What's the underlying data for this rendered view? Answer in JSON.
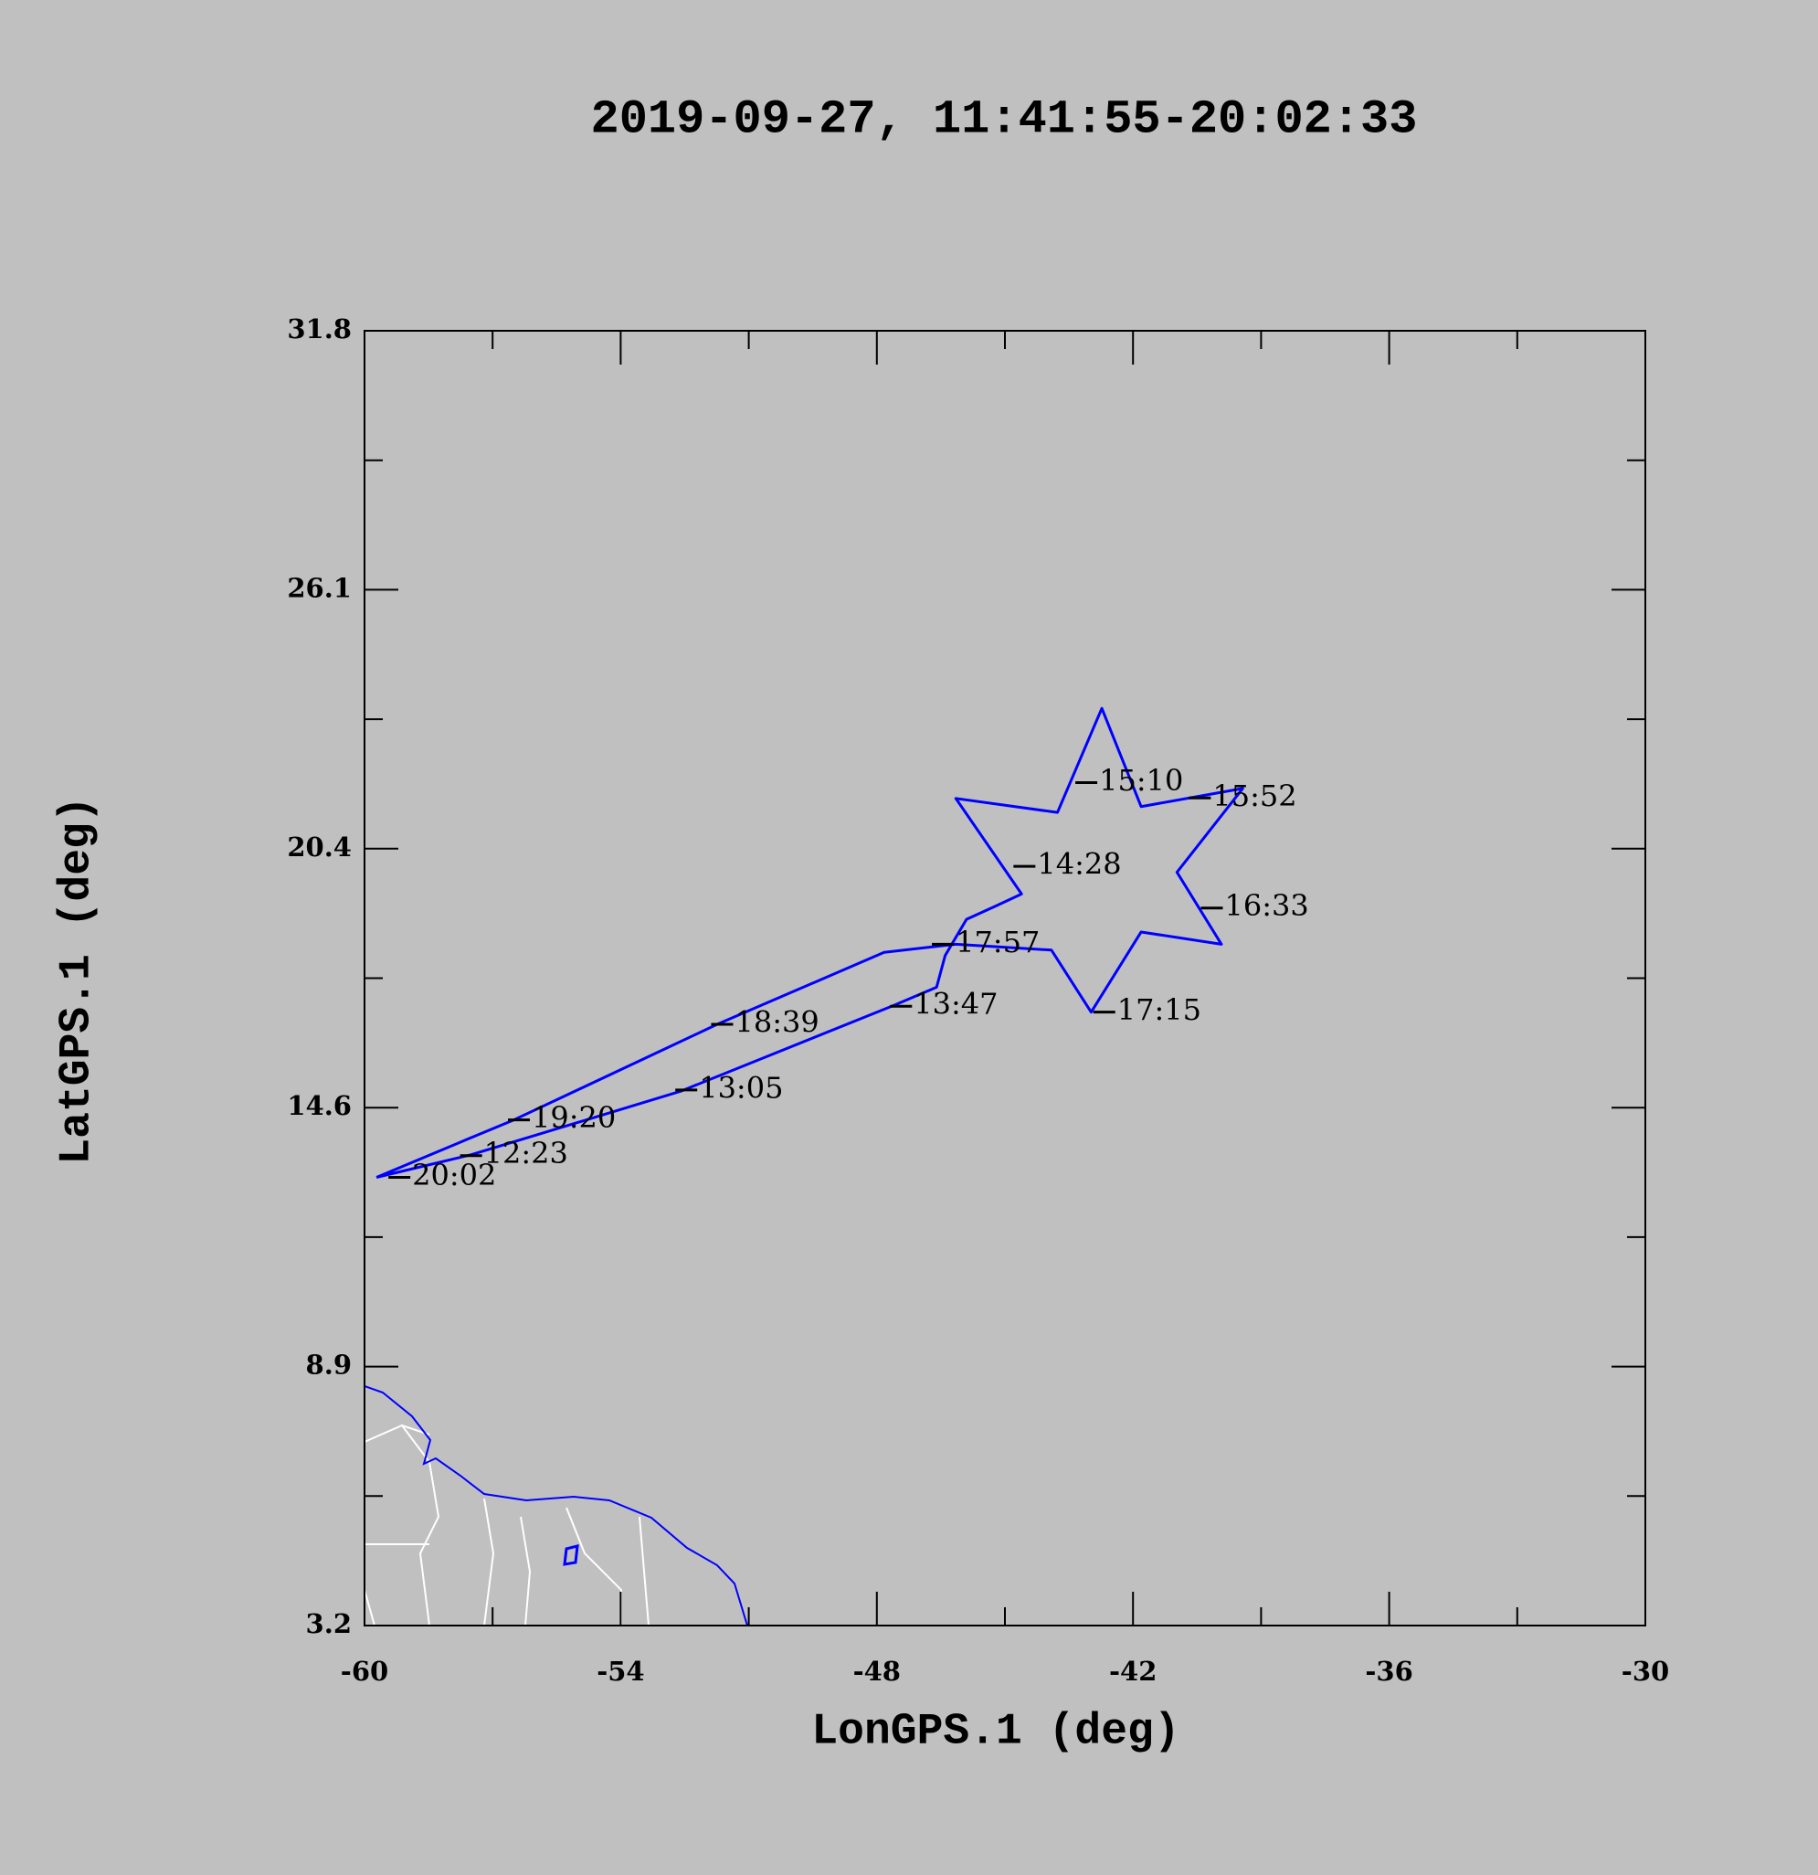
{
  "chart_data": {
    "type": "line",
    "title": "2019-09-27, 11:41:55-20:02:33",
    "x_label": "LonGPS.1 (deg)",
    "y_label": "LatGPS.1 (deg)",
    "x": [
      -59.72,
      -57.5,
      -52.6,
      -47.6,
      -46.6,
      -46.4,
      -45.9,
      -45.2,
      -44.61,
      -46.15,
      -43.77,
      -42.73,
      -41.81,
      -39.43,
      -40.97,
      -39.93,
      -41.81,
      -42.98,
      -43.91,
      -46.15,
      -47.83,
      -51.74,
      -56.5,
      -57.9,
      -59.72
    ],
    "series": [
      {
        "color": "#0000ff",
        "values": [
          13.1,
          13.6,
          15.0,
          16.9,
          17.3,
          18.0,
          18.8,
          19.1,
          19.36,
          21.47,
          21.16,
          23.46,
          21.29,
          21.69,
          19.84,
          18.25,
          18.52,
          16.75,
          18.12,
          18.25,
          18.07,
          16.48,
          14.37,
          13.82,
          13.1
        ]
      }
    ],
    "annotations": [
      {
        "text": "12:23",
        "x": -57.76,
        "y": 13.58
      },
      {
        "text": "13:05",
        "x": -52.72,
        "y": 15.03
      },
      {
        "text": "13:47",
        "x": -47.69,
        "y": 16.88
      },
      {
        "text": "14:28",
        "x": -44.8,
        "y": 19.97
      },
      {
        "text": "15:10",
        "x": -43.35,
        "y": 21.82
      },
      {
        "text": "15:52",
        "x": -40.69,
        "y": 21.48
      },
      {
        "text": "16:33",
        "x": -40.41,
        "y": 19.05
      },
      {
        "text": "17:15",
        "x": -42.93,
        "y": 16.75
      },
      {
        "text": "17:57",
        "x": -46.71,
        "y": 18.25
      },
      {
        "text": "18:39",
        "x": -51.88,
        "y": 16.48
      },
      {
        "text": "19:20",
        "x": -56.64,
        "y": 14.37
      },
      {
        "text": "20:02",
        "x": -59.44,
        "y": 13.1
      }
    ],
    "xlim": [
      -60,
      -30
    ],
    "xticks": [
      -60,
      -54,
      -48,
      -42,
      -36,
      -30
    ],
    "xminorticks": [
      -57,
      -51,
      -45,
      -39,
      -33
    ],
    "ylim": [
      3.2,
      31.8
    ],
    "yticks": [
      3.2,
      {
        "value": 8.92,
        "label": "8.9"
      },
      {
        "value": 14.64,
        "label": "14.6"
      },
      {
        "value": 20.36,
        "label": "20.4"
      },
      {
        "value": 26.08,
        "label": "26.1"
      },
      31.8
    ],
    "yminorticks": [
      6.06,
      11.78,
      17.5,
      23.22,
      28.94
    ]
  }
}
